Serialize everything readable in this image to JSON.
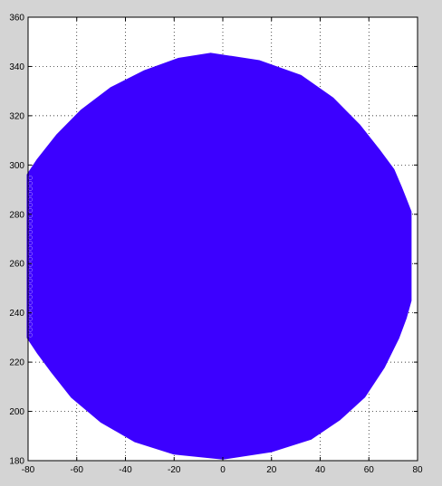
{
  "chart_data": {
    "type": "scatter",
    "title": "",
    "xlabel": "",
    "ylabel": "",
    "xlim": [
      -80,
      80
    ],
    "ylim": [
      180,
      360
    ],
    "xticks": [
      -80,
      -60,
      -40,
      -20,
      0,
      20,
      40,
      60,
      80
    ],
    "yticks": [
      180,
      200,
      220,
      240,
      260,
      280,
      300,
      320,
      340,
      360
    ],
    "grid": true,
    "marker": "circle",
    "series": [
      {
        "color": "#3c00ff",
        "shape": "filled disc of densely packed circle markers, clipped at x = -80 and x = 77",
        "center": [
          -5,
          263
        ],
        "x_range": [
          -80,
          77
        ],
        "y_range": [
          181,
          345
        ],
        "outline": [
          [
            -5,
            345
          ],
          [
            15,
            342
          ],
          [
            32,
            336
          ],
          [
            45,
            327
          ],
          [
            56,
            316
          ],
          [
            64,
            306
          ],
          [
            70,
            298
          ],
          [
            73,
            291
          ],
          [
            75,
            286
          ],
          [
            77,
            281
          ],
          [
            77,
            245
          ],
          [
            75,
            238
          ],
          [
            72,
            230
          ],
          [
            66,
            218
          ],
          [
            58,
            206
          ],
          [
            48,
            197
          ],
          [
            36,
            189
          ],
          [
            20,
            184
          ],
          [
            0,
            181
          ],
          [
            -20,
            183
          ],
          [
            -36,
            188
          ],
          [
            -50,
            196
          ],
          [
            -62,
            206
          ],
          [
            -70,
            216
          ],
          [
            -76,
            224
          ],
          [
            -80,
            230
          ],
          [
            -80,
            296
          ],
          [
            -76,
            302
          ],
          [
            -68,
            312
          ],
          [
            -58,
            322
          ],
          [
            -46,
            331
          ],
          [
            -32,
            338
          ],
          [
            -18,
            343
          ]
        ]
      }
    ]
  }
}
